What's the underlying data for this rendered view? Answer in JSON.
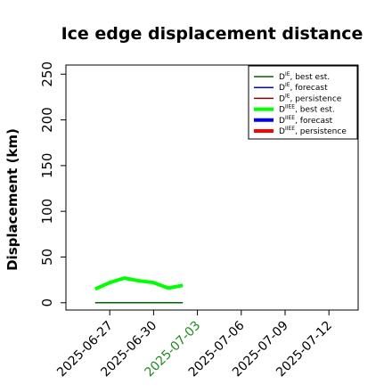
{
  "chart_data": {
    "type": "line",
    "title": "Ice edge displacement distance",
    "ylabel": "Displacement (km)",
    "xlabel": "",
    "ylim": [
      -8,
      260
    ],
    "yticks": [
      0,
      50,
      100,
      150,
      200,
      250
    ],
    "xlim": [
      "2025-06-24",
      "2025-07-14"
    ],
    "xticks": [
      "2025-06-27",
      "2025-06-30",
      "2025-07-03",
      "2025-07-06",
      "2025-07-09",
      "2025-07-12"
    ],
    "highlighted_xtick": "2025-07-03",
    "highlight_color": "#228b22",
    "grid": false,
    "legend_position": "top-right",
    "legend": [
      {
        "base": "D",
        "sup": "IE",
        "text": ", best est.",
        "color": "#006400",
        "width": 1.5
      },
      {
        "base": "D",
        "sup": "IE",
        "text": ", forecast",
        "color": "#0000ff",
        "width": 1.5
      },
      {
        "base": "D",
        "sup": "IE",
        "text": ", persistence",
        "color": "#8b0000",
        "width": 1.5
      },
      {
        "base": "D",
        "sup": "IIEE",
        "text": ", best est.",
        "color": "#00ff00",
        "width": 4
      },
      {
        "base": "D",
        "sup": "IIEE",
        "text": ", forecast",
        "color": "#0000ff",
        "width": 4
      },
      {
        "base": "D",
        "sup": "IIEE",
        "text": ", persistence",
        "color": "#ff0000",
        "width": 4
      }
    ],
    "series": [
      {
        "name": "D^IIEE, best est.",
        "color": "#00ff00",
        "width": 4,
        "x": [
          "2025-06-26",
          "2025-06-27",
          "2025-06-28",
          "2025-06-29",
          "2025-06-30",
          "2025-07-01",
          "2025-07-02"
        ],
        "y": [
          15,
          22,
          27,
          24,
          22,
          16,
          19
        ]
      },
      {
        "name": "D^IE, best est.",
        "color": "#006400",
        "width": 1.5,
        "x": [
          "2025-06-26",
          "2025-07-02"
        ],
        "y": [
          0,
          0
        ]
      }
    ]
  }
}
